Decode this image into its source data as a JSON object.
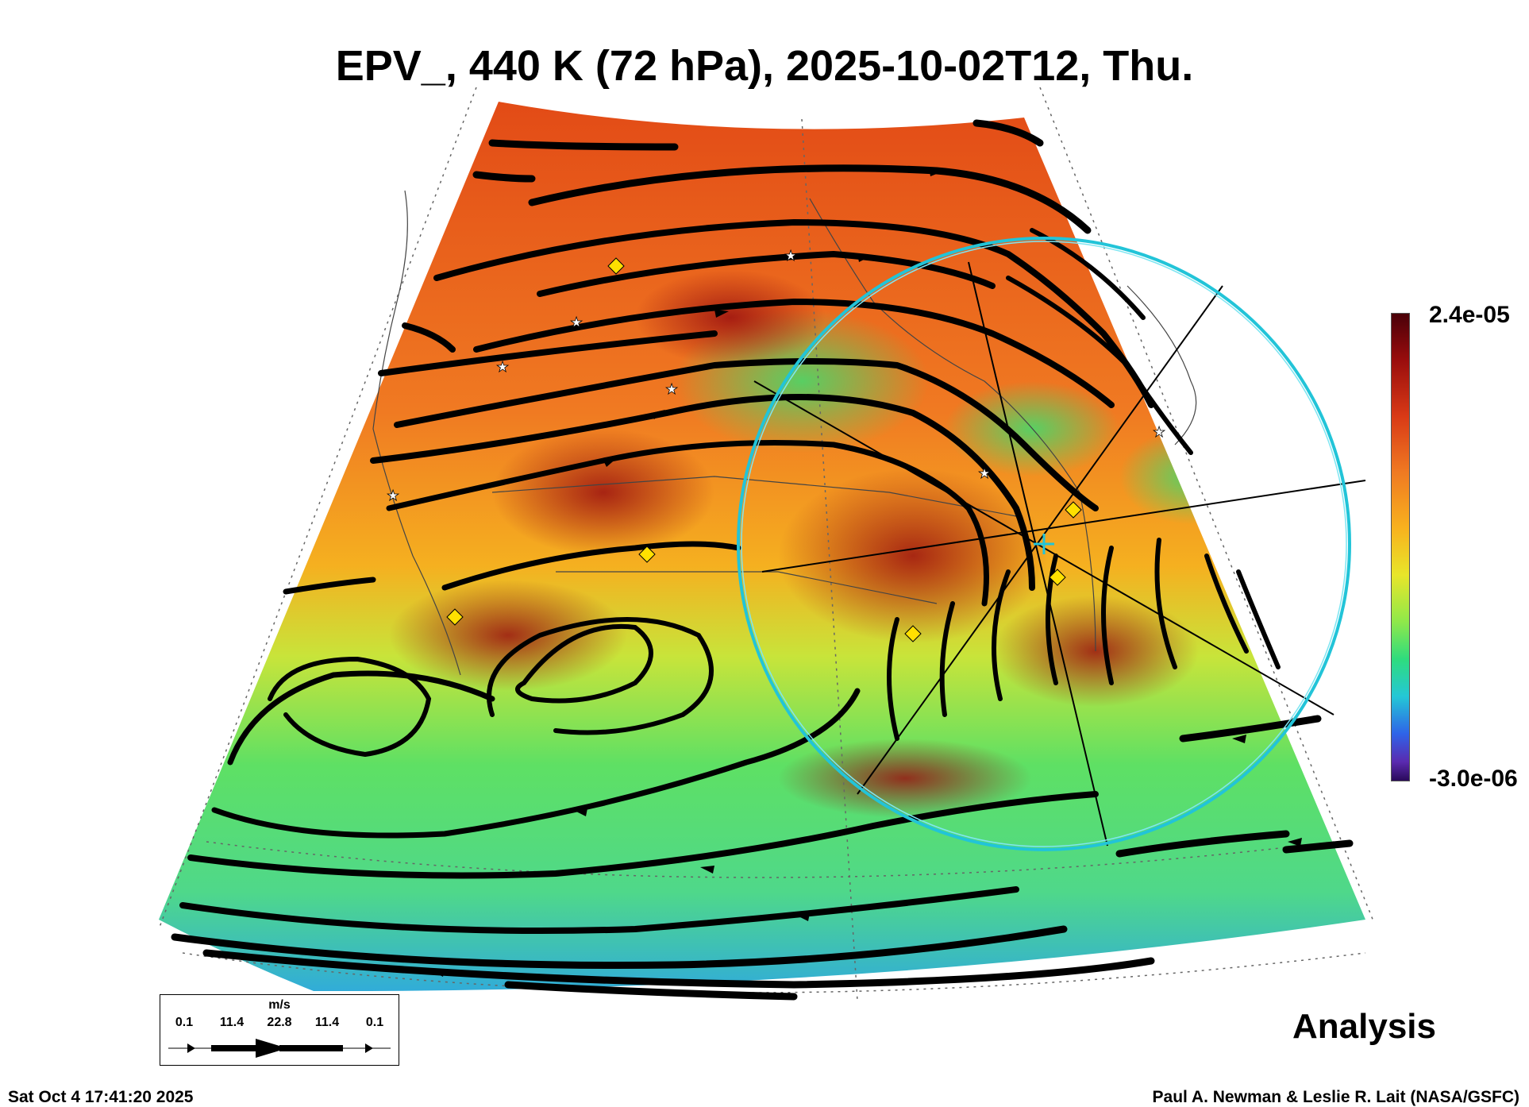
{
  "title": "EPV_, 440 K (72 hPa), 2025-10-02T12, Thu.",
  "colorbar": {
    "max_label": "2.4e-05",
    "min_label": "-3.0e-06",
    "colors": [
      "#4a0008",
      "#9a0d0d",
      "#d93a16",
      "#f07a22",
      "#f8b21e",
      "#e8e62a",
      "#8fe84a",
      "#2edc7e",
      "#24c7d6",
      "#2f63e8",
      "#5a2ab0",
      "#2a0a5a"
    ]
  },
  "legend": {
    "unit": "m/s",
    "ticks": [
      "0.1",
      "11.4",
      "22.8",
      "11.4",
      "0.1"
    ]
  },
  "analysis_label": "Analysis",
  "footer": {
    "timestamp": "Sat Oct  4 17:41:20 2025",
    "credit": "Paul A. Newman & Leslie R. Lait (NASA/GSFC)"
  },
  "markers": {
    "star_color": "#ffffff",
    "diamond_color": "#ffe000",
    "circle_color": "#22c4d8"
  }
}
